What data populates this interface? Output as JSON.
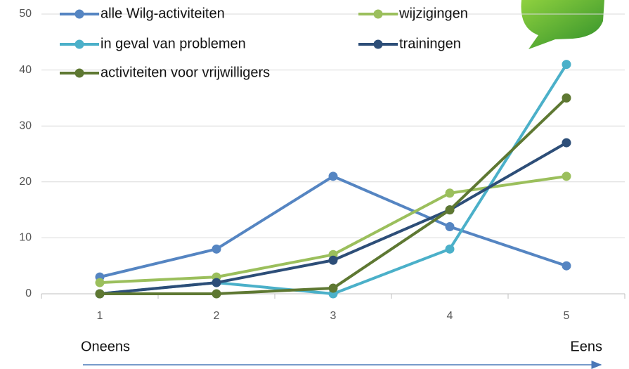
{
  "chart_data": {
    "type": "line",
    "categories": [
      "1",
      "2",
      "3",
      "4",
      "5"
    ],
    "series": [
      {
        "name": "alle Wilg-activiteiten",
        "color": "#5585c2",
        "values": [
          3,
          8,
          21,
          12,
          5
        ]
      },
      {
        "name": "wijzigingen",
        "color": "#9bbf5c",
        "values": [
          2,
          3,
          7,
          18,
          21
        ]
      },
      {
        "name": "in geval van problemen",
        "color": "#4bb0c9",
        "values": [
          0,
          2,
          0,
          8,
          41
        ]
      },
      {
        "name": "trainingen",
        "color": "#2d4e78",
        "values": [
          0,
          2,
          6,
          15,
          27
        ]
      },
      {
        "name": "activiteiten voor vrijwilligers",
        "color": "#5e7832",
        "values": [
          0,
          0,
          1,
          15,
          35
        ]
      }
    ],
    "ylim": [
      0,
      50
    ],
    "yticks": [
      0,
      10,
      20,
      30,
      40,
      50
    ],
    "grid": true,
    "annotations": [
      "Oneens",
      "Eens"
    ]
  }
}
